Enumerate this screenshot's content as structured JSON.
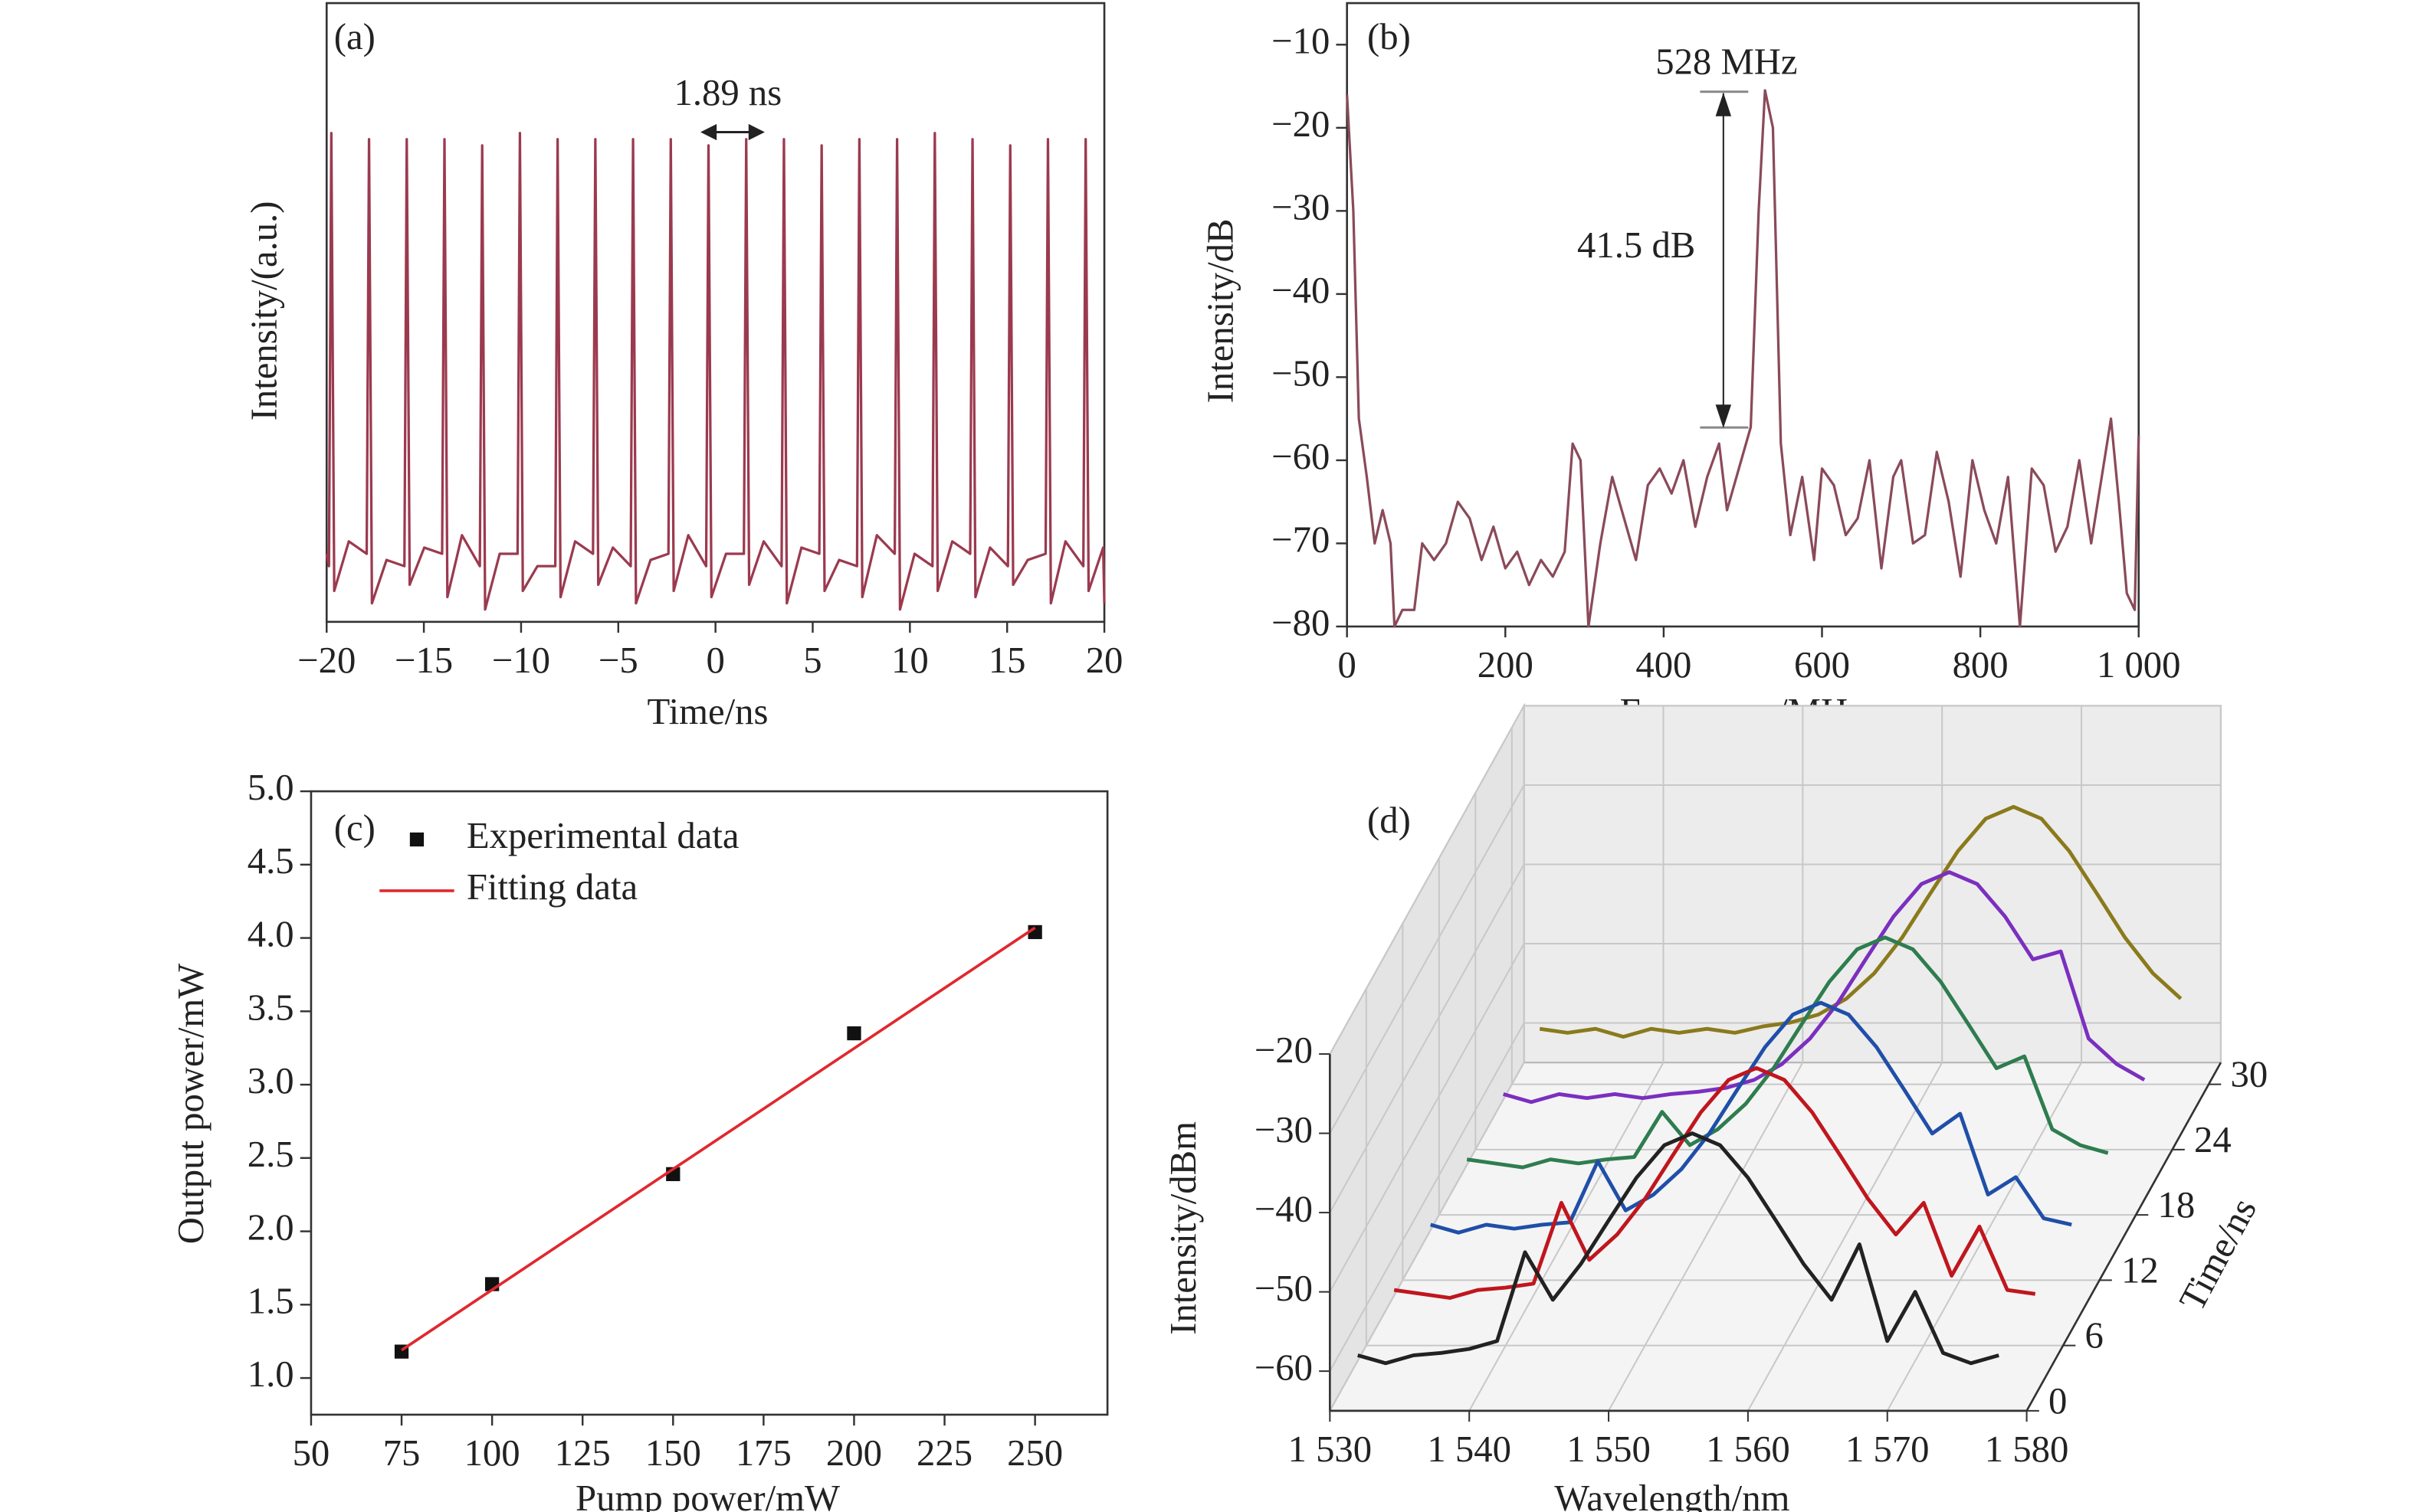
{
  "chart_data": [
    {
      "type": "line",
      "panel_label": "(a)",
      "xlabel": "Time/ns",
      "ylabel": "Intensity/(a.u.)",
      "annotation": "1.89 ns",
      "color": "#9b3a4f",
      "xlim": [
        -20,
        20
      ],
      "ylim": [
        0,
        1
      ],
      "xticks": [
        {
          "value": -20,
          "label": "−20"
        },
        {
          "value": -15,
          "label": "−15"
        },
        {
          "value": -10,
          "label": "−10"
        },
        {
          "value": -5,
          "label": "−5"
        },
        0,
        5,
        10,
        15,
        20
      ],
      "x": [
        -20,
        -19.88,
        -19.76,
        -19.61,
        -18.86,
        -17.94,
        -17.82,
        -17.67,
        -16.92,
        -16.0,
        -15.88,
        -15.73,
        -14.98,
        -14.06,
        -13.94,
        -13.79,
        -13.04,
        -12.12,
        -12.0,
        -11.85,
        -11.1,
        -10.18,
        -10.06,
        -9.91,
        -9.16,
        -8.24,
        -8.12,
        -7.97,
        -7.22,
        -6.3,
        -6.18,
        -6.03,
        -5.28,
        -4.36,
        -4.24,
        -4.09,
        -3.34,
        -2.42,
        -2.3,
        -2.15,
        -1.4,
        -0.48,
        -0.36,
        -0.21,
        0.54,
        1.46,
        1.58,
        1.73,
        2.48,
        3.4,
        3.52,
        3.67,
        4.42,
        5.34,
        5.46,
        5.61,
        6.36,
        7.28,
        7.4,
        7.55,
        8.3,
        9.22,
        9.34,
        9.49,
        10.24,
        11.16,
        11.28,
        11.43,
        12.18,
        13.1,
        13.22,
        13.37,
        14.12,
        15.04,
        15.16,
        15.31,
        16.06,
        16.98,
        17.1,
        17.25,
        18.0,
        18.92,
        19.04,
        19.19,
        19.94,
        20
      ],
      "values": [
        0.11,
        0.09,
        0.79,
        0.05,
        0.13,
        0.11,
        0.78,
        0.03,
        0.1,
        0.09,
        0.78,
        0.06,
        0.12,
        0.11,
        0.78,
        0.04,
        0.14,
        0.09,
        0.77,
        0.02,
        0.11,
        0.11,
        0.79,
        0.05,
        0.09,
        0.09,
        0.78,
        0.04,
        0.13,
        0.11,
        0.78,
        0.06,
        0.12,
        0.09,
        0.78,
        0.03,
        0.1,
        0.11,
        0.78,
        0.05,
        0.14,
        0.09,
        0.77,
        0.04,
        0.11,
        0.11,
        0.78,
        0.06,
        0.13,
        0.09,
        0.78,
        0.03,
        0.12,
        0.11,
        0.77,
        0.05,
        0.1,
        0.09,
        0.78,
        0.04,
        0.14,
        0.11,
        0.78,
        0.02,
        0.11,
        0.09,
        0.79,
        0.05,
        0.13,
        0.11,
        0.78,
        0.04,
        0.12,
        0.09,
        0.77,
        0.06,
        0.1,
        0.11,
        0.78,
        0.03,
        0.13,
        0.09,
        0.78,
        0.05,
        0.12,
        0.03
      ]
    },
    {
      "type": "line",
      "panel_label": "(b)",
      "xlabel": "Frequency/MHz",
      "ylabel": "Intensity/dB",
      "annotations": [
        "528 MHz",
        "41.5 dB"
      ],
      "color": "#8a4a5a",
      "xlim": [
        0,
        1000
      ],
      "ylim": [
        -80,
        -5
      ],
      "xticks": [
        0,
        200,
        400,
        600,
        800,
        {
          "value": 1000,
          "label": "1 000"
        }
      ],
      "yticks": [
        {
          "value": -80,
          "label": "−80"
        },
        {
          "value": -70,
          "label": "−70"
        },
        {
          "value": -60,
          "label": "−60"
        },
        {
          "value": -50,
          "label": "−50"
        },
        {
          "value": -40,
          "label": "−40"
        },
        {
          "value": -30,
          "label": "−30"
        },
        {
          "value": -20,
          "label": "−20"
        },
        {
          "value": -10,
          "label": "−10"
        }
      ],
      "x": [
        0,
        8,
        15,
        25,
        35,
        45,
        55,
        60,
        70,
        85,
        95,
        110,
        125,
        140,
        155,
        170,
        185,
        200,
        215,
        230,
        245,
        260,
        275,
        285,
        295,
        305,
        320,
        335,
        350,
        365,
        380,
        395,
        410,
        425,
        440,
        455,
        470,
        480,
        495,
        510,
        520,
        528,
        538,
        548,
        560,
        575,
        590,
        600,
        615,
        630,
        645,
        660,
        675,
        690,
        700,
        715,
        730,
        745,
        760,
        775,
        790,
        805,
        820,
        835,
        850,
        865,
        880,
        895,
        910,
        925,
        940,
        955,
        965,
        975,
        985,
        995,
        1000
      ],
      "values": [
        -16,
        -30,
        -55,
        -62,
        -70,
        -66,
        -70,
        -80,
        -78,
        -78,
        -70,
        -72,
        -70,
        -65,
        -67,
        -72,
        -68,
        -73,
        -71,
        -75,
        -72,
        -74,
        -71,
        -58,
        -60,
        -80,
        -70,
        -62,
        -67,
        -72,
        -63,
        -61,
        -64,
        -60,
        -68,
        -62,
        -58,
        -66,
        -61,
        -56,
        -30,
        -15.5,
        -20,
        -58,
        -69,
        -62,
        -72,
        -61,
        -63,
        -69,
        -67,
        -60,
        -73,
        -62,
        -60,
        -70,
        -69,
        -59,
        -65,
        -74,
        -60,
        -66,
        -70,
        -62,
        -80,
        -61,
        -63,
        -71,
        -68,
        -60,
        -70,
        -61,
        -55,
        -65,
        -76,
        -78,
        -57
      ]
    },
    {
      "type": "scatter",
      "panel_label": "(c)",
      "xlabel": "Pump power/mW",
      "ylabel": "Output power/mW",
      "legend": "upper left",
      "xlim": [
        50,
        270
      ],
      "ylim": [
        0.75,
        5
      ],
      "xticks": [
        50,
        75,
        100,
        125,
        150,
        175,
        200,
        225,
        250
      ],
      "yticks": [
        {
          "value": 1,
          "label": "1.0"
        },
        1.5,
        {
          "value": 2,
          "label": "2.0"
        },
        2.5,
        {
          "value": 3,
          "label": "3.0"
        },
        3.5,
        {
          "value": 4,
          "label": "4.0"
        },
        4.5,
        {
          "value": 5,
          "label": "5.0"
        }
      ],
      "series": [
        {
          "name": "Experimental data",
          "color": "#111111",
          "marker": "square",
          "x": [
            75,
            100,
            150,
            200,
            250
          ],
          "values": [
            1.18,
            1.64,
            2.39,
            3.35,
            4.04
          ]
        },
        {
          "name": "Fitting data",
          "color": "#e0282e",
          "marker": "line",
          "x": [
            75,
            250
          ],
          "values": [
            1.19,
            4.07
          ]
        }
      ]
    },
    {
      "type": "waterfall3d",
      "panel_label": "(d)",
      "xlabel": "Wavelength/nm",
      "ylabel": "Intensity/dBm",
      "zlabel": "Time/ns",
      "xlim": [
        1530,
        1580
      ],
      "ylim": [
        -65,
        -20
      ],
      "zlim": [
        0,
        32
      ],
      "xticks": [
        {
          "value": 1530,
          "label": "1 530"
        },
        {
          "value": 1540,
          "label": "1 540"
        },
        {
          "value": 1550,
          "label": "1 550"
        },
        {
          "value": 1560,
          "label": "1 560"
        },
        {
          "value": 1570,
          "label": "1 570"
        },
        {
          "value": 1580,
          "label": "1 580"
        }
      ],
      "yticks": [
        {
          "value": -60,
          "label": "−60"
        },
        {
          "value": -50,
          "label": "−50"
        },
        {
          "value": -40,
          "label": "−40"
        },
        {
          "value": -30,
          "label": "−30"
        },
        {
          "value": -20,
          "label": "−20"
        }
      ],
      "zticks": [
        0,
        6,
        12,
        18,
        24,
        30
      ],
      "x": [
        1532,
        1534,
        1536,
        1538,
        1540,
        1542,
        1544,
        1546,
        1548,
        1550,
        1552,
        1554,
        1556,
        1558,
        1560,
        1562,
        1564,
        1566,
        1568,
        1570,
        1572,
        1574,
        1576,
        1578
      ],
      "series": [
        {
          "z": 0,
          "color": "#222222",
          "values": [
            -58,
            -59,
            -58,
            -57.7,
            -57.2,
            -56.2,
            -45,
            -51,
            -46.5,
            -41,
            -35.6,
            -31.5,
            -30,
            -31.5,
            -35.6,
            -41,
            -46.5,
            -51,
            -44,
            -56.2,
            -50,
            -57.7,
            -59,
            -58
          ]
        },
        {
          "z": 6,
          "color": "#c0161d",
          "values": [
            -58,
            -58.5,
            -59,
            -58,
            -57.7,
            -57.2,
            -47,
            -54.2,
            -51,
            -46.5,
            -41,
            -35.6,
            -31.5,
            -30,
            -31.5,
            -35.6,
            -41,
            -46.5,
            -51,
            -47,
            -56.2,
            -50,
            -58,
            -58.5
          ]
        },
        {
          "z": 12,
          "color": "#1f4fa8",
          "values": [
            -58,
            -59,
            -58,
            -58.5,
            -58,
            -57.7,
            -50,
            -56.2,
            -54.2,
            -51,
            -46.5,
            -41,
            -35.6,
            -31.5,
            -30,
            -31.5,
            -35.6,
            -41,
            -46.5,
            -44,
            -54.2,
            -52,
            -57.2,
            -58
          ]
        },
        {
          "z": 18,
          "color": "#2e7d4f",
          "values": [
            -58,
            -58.5,
            -59,
            -58,
            -58.5,
            -58,
            -57.7,
            -52,
            -56.2,
            -54.2,
            -51,
            -46.5,
            -41,
            -35.6,
            -31.5,
            -30,
            -31.5,
            -35.6,
            -41,
            -46.5,
            -45,
            -54.2,
            -56.2,
            -57.2
          ]
        },
        {
          "z": 24,
          "color": "#7b2fbf",
          "values": [
            -58,
            -59,
            -58,
            -58.5,
            -58,
            -58.5,
            -58,
            -57.7,
            -57.2,
            -56.2,
            -54.2,
            -51,
            -46.5,
            -41,
            -35.6,
            -31.5,
            -30,
            -31.5,
            -35.6,
            -41,
            -40,
            -51,
            -54.2,
            -56.2
          ]
        },
        {
          "z": 30,
          "color": "#8a7a1c",
          "values": [
            -58,
            -58.5,
            -58,
            -59,
            -58,
            -58.5,
            -58,
            -58.5,
            -57.7,
            -57.2,
            -56.2,
            -54.2,
            -51,
            -46.5,
            -41,
            -35.6,
            -31.5,
            -30,
            -31.5,
            -35.6,
            -41,
            -46.5,
            -51,
            -54.2
          ]
        }
      ]
    }
  ]
}
